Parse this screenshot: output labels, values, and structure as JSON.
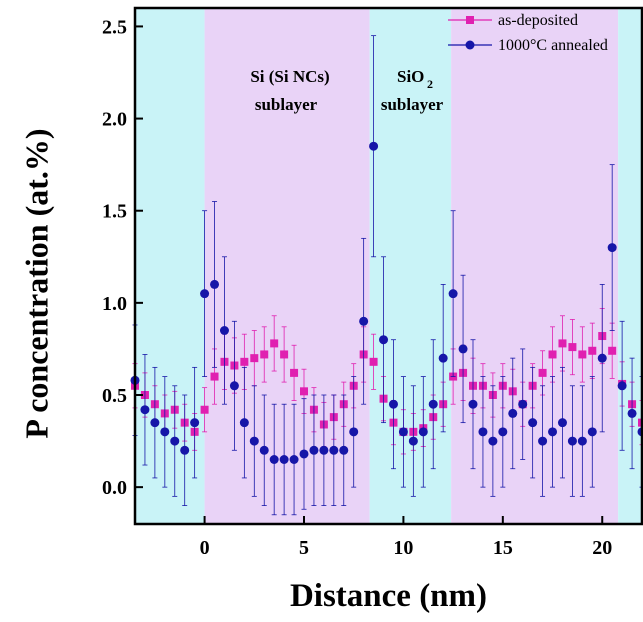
{
  "chart_data": {
    "type": "scatter",
    "xlabel": "Distance (nm)",
    "ylabel": "P concentration (at.%)",
    "xlim": [
      -3.5,
      22
    ],
    "ylim": [
      -0.2,
      2.6
    ],
    "xticks": [
      0,
      5,
      10,
      15,
      20
    ],
    "yticks": [
      0.0,
      0.5,
      1.0,
      1.5,
      2.0,
      2.5
    ],
    "xtick_labels": [
      "0",
      "5",
      "10",
      "15",
      "20"
    ],
    "ytick_labels": [
      "0.0",
      "0.5",
      "1.0",
      "1.5",
      "2.0",
      "2.5"
    ],
    "regions": [
      {
        "type": "SiO2",
        "x0": -3.5,
        "x1": 0,
        "color": "#c9f3f7"
      },
      {
        "type": "Si",
        "x0": 0,
        "x1": 8.3,
        "color": "#e9d3f7"
      },
      {
        "type": "SiO2",
        "x0": 8.3,
        "x1": 12.4,
        "color": "#c9f3f7"
      },
      {
        "type": "Si",
        "x0": 12.4,
        "x1": 20.8,
        "color": "#e9d3f7"
      },
      {
        "type": "SiO2",
        "x0": 20.8,
        "x1": 22,
        "color": "#c9f3f7"
      }
    ],
    "annotations": {
      "si_line1": "Si (Si NCs)",
      "si_line2": "sublayer",
      "sio2_main": "SiO",
      "sio2_sub": "2",
      "sio2_line2": "sublayer"
    },
    "legend_position": "top-right",
    "series": [
      {
        "name": "as-deposited",
        "color": "#e020b0",
        "marker": "square",
        "x": [
          -3.5,
          -3,
          -2.5,
          -2,
          -1.5,
          -1,
          -0.5,
          0,
          0.5,
          1,
          1.5,
          2,
          2.5,
          3,
          3.5,
          4,
          4.5,
          5,
          5.5,
          6,
          6.5,
          7,
          7.5,
          8,
          8.5,
          9,
          9.5,
          10,
          10.5,
          11,
          11.5,
          12,
          12.5,
          13,
          13.5,
          14,
          14.5,
          15,
          15.5,
          16,
          16.5,
          17,
          17.5,
          18,
          18.5,
          19,
          19.5,
          20,
          20.5,
          21,
          21.5,
          22
        ],
        "y": [
          0.55,
          0.5,
          0.45,
          0.4,
          0.42,
          0.35,
          0.3,
          0.42,
          0.6,
          0.68,
          0.66,
          0.68,
          0.7,
          0.72,
          0.78,
          0.72,
          0.62,
          0.52,
          0.42,
          0.34,
          0.38,
          0.45,
          0.55,
          0.72,
          0.68,
          0.48,
          0.35,
          0.3,
          0.3,
          0.32,
          0.38,
          0.45,
          0.6,
          0.62,
          0.55,
          0.55,
          0.5,
          0.55,
          0.52,
          0.45,
          0.55,
          0.62,
          0.72,
          0.78,
          0.76,
          0.72,
          0.74,
          0.82,
          0.74,
          0.56,
          0.45,
          0.35
        ],
        "err": [
          0.12,
          0.12,
          0.1,
          0.1,
          0.1,
          0.1,
          0.1,
          0.12,
          0.15,
          0.15,
          0.15,
          0.15,
          0.15,
          0.15,
          0.15,
          0.15,
          0.15,
          0.12,
          0.12,
          0.12,
          0.12,
          0.12,
          0.12,
          0.15,
          0.15,
          0.12,
          0.12,
          0.12,
          0.1,
          0.1,
          0.12,
          0.12,
          0.15,
          0.15,
          0.15,
          0.12,
          0.12,
          0.12,
          0.12,
          0.12,
          0.12,
          0.12,
          0.15,
          0.15,
          0.15,
          0.15,
          0.15,
          0.15,
          0.15,
          0.12,
          0.12,
          0.12
        ]
      },
      {
        "name": "1000°C annealed",
        "color": "#1616a8",
        "marker": "circle",
        "x": [
          -3.5,
          -3,
          -2.5,
          -2,
          -1.5,
          -1,
          -0.5,
          0,
          0.5,
          1,
          1.5,
          2,
          2.5,
          3,
          3.5,
          4,
          4.5,
          5,
          5.5,
          6,
          6.5,
          7,
          7.5,
          8,
          8.5,
          9,
          9.5,
          10,
          10.5,
          11,
          11.5,
          12,
          12.5,
          13,
          13.5,
          14,
          14.5,
          15,
          15.5,
          16,
          16.5,
          17,
          17.5,
          18,
          18.5,
          19,
          19.5,
          20,
          20.5,
          21,
          21.5,
          22
        ],
        "y": [
          0.58,
          0.42,
          0.35,
          0.3,
          0.25,
          0.2,
          0.35,
          1.05,
          1.1,
          0.85,
          0.55,
          0.35,
          0.25,
          0.2,
          0.15,
          0.15,
          0.15,
          0.18,
          0.2,
          0.2,
          0.2,
          0.2,
          0.3,
          0.9,
          1.85,
          0.8,
          0.45,
          0.3,
          0.25,
          0.3,
          0.45,
          0.7,
          1.05,
          0.75,
          0.45,
          0.3,
          0.25,
          0.3,
          0.4,
          0.45,
          0.35,
          0.25,
          0.3,
          0.35,
          0.25,
          0.25,
          0.3,
          0.7,
          1.3,
          0.55,
          0.4,
          0.3
        ],
        "err": [
          0.3,
          0.3,
          0.3,
          0.3,
          0.3,
          0.3,
          0.3,
          0.45,
          0.45,
          0.4,
          0.35,
          0.3,
          0.3,
          0.3,
          0.3,
          0.3,
          0.3,
          0.3,
          0.3,
          0.3,
          0.3,
          0.3,
          0.3,
          0.45,
          0.6,
          0.45,
          0.35,
          0.3,
          0.3,
          0.3,
          0.35,
          0.4,
          0.45,
          0.4,
          0.35,
          0.3,
          0.3,
          0.3,
          0.3,
          0.3,
          0.3,
          0.3,
          0.3,
          0.3,
          0.3,
          0.3,
          0.3,
          0.4,
          0.45,
          0.35,
          0.3,
          0.3
        ]
      }
    ]
  }
}
